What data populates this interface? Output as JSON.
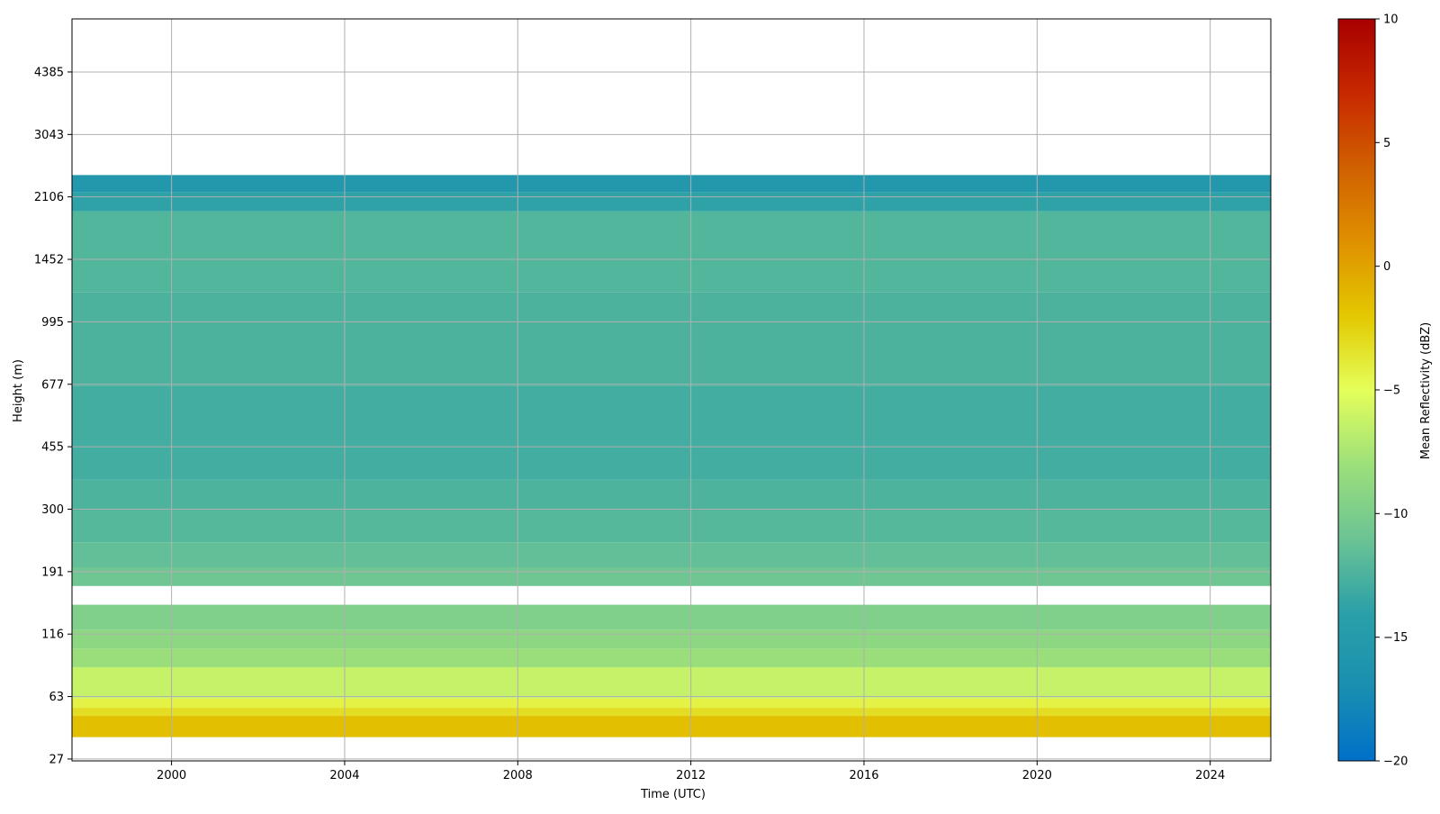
{
  "chart_data": {
    "type": "heatmap",
    "xlabel": "Time (UTC)",
    "ylabel": "Height (m)",
    "x_ticks": [
      "2000",
      "2004",
      "2008",
      "2012",
      "2016",
      "2020",
      "2024"
    ],
    "x_tick_values": [
      2000,
      2004,
      2008,
      2012,
      2016,
      2020,
      2024
    ],
    "xlim": [
      1997.7,
      2025.4
    ],
    "y_ticks": [
      "27",
      "63",
      "116",
      "191",
      "300",
      "455",
      "677",
      "995",
      "1452",
      "2106",
      "3043",
      "4385"
    ],
    "ylim_tick_index": [
      -0.03,
      11.85
    ],
    "colorbar": {
      "label": "Mean Reflectivity (dBZ)",
      "range": [
        -20,
        10
      ],
      "ticks": [
        "10",
        "5",
        "0",
        "−5",
        "−10",
        "−15",
        "−20"
      ],
      "tick_values": [
        10,
        5,
        0,
        -5,
        -10,
        -15,
        -20
      ],
      "colors": [
        "#0070c8",
        "#1a8fb0",
        "#2ba0a8",
        "#6cc494",
        "#9de07a",
        "#e4ff5a",
        "#e3c800",
        "#df9000",
        "#d06000",
        "#c82800",
        "#a80000"
      ]
    },
    "grid": true,
    "layers": [
      {
        "bottom": 0.35,
        "top": 0.69,
        "dbz": -1.5
      },
      {
        "bottom": 0.69,
        "top": 0.82,
        "dbz": -3.2
      },
      {
        "bottom": 0.82,
        "top": 0.97,
        "dbz": -4.3
      },
      {
        "bottom": 0.97,
        "top": 1.47,
        "dbz": -6.3
      },
      {
        "bottom": 1.47,
        "top": 1.77,
        "dbz": -8.2
      },
      {
        "bottom": 1.77,
        "top": 2.07,
        "dbz": -9.0
      },
      {
        "bottom": 2.07,
        "top": 2.47,
        "dbz": -9.8
      },
      {
        "bottom": 2.77,
        "top": 3.07,
        "dbz": -10.8
      },
      {
        "bottom": 3.07,
        "top": 3.47,
        "dbz": -11.4
      },
      {
        "bottom": 3.47,
        "top": 3.97,
        "dbz": -12.0
      },
      {
        "bottom": 3.97,
        "top": 4.47,
        "dbz": -12.4
      },
      {
        "bottom": 4.47,
        "top": 5.97,
        "dbz": -12.9
      },
      {
        "bottom": 5.97,
        "top": 7.47,
        "dbz": -12.5
      },
      {
        "bottom": 7.47,
        "top": 8.77,
        "dbz": -12.2
      },
      {
        "bottom": 8.77,
        "top": 9.07,
        "dbz": -13.8
      },
      {
        "bottom": 9.07,
        "top": 9.35,
        "dbz": -15.5
      }
    ]
  }
}
